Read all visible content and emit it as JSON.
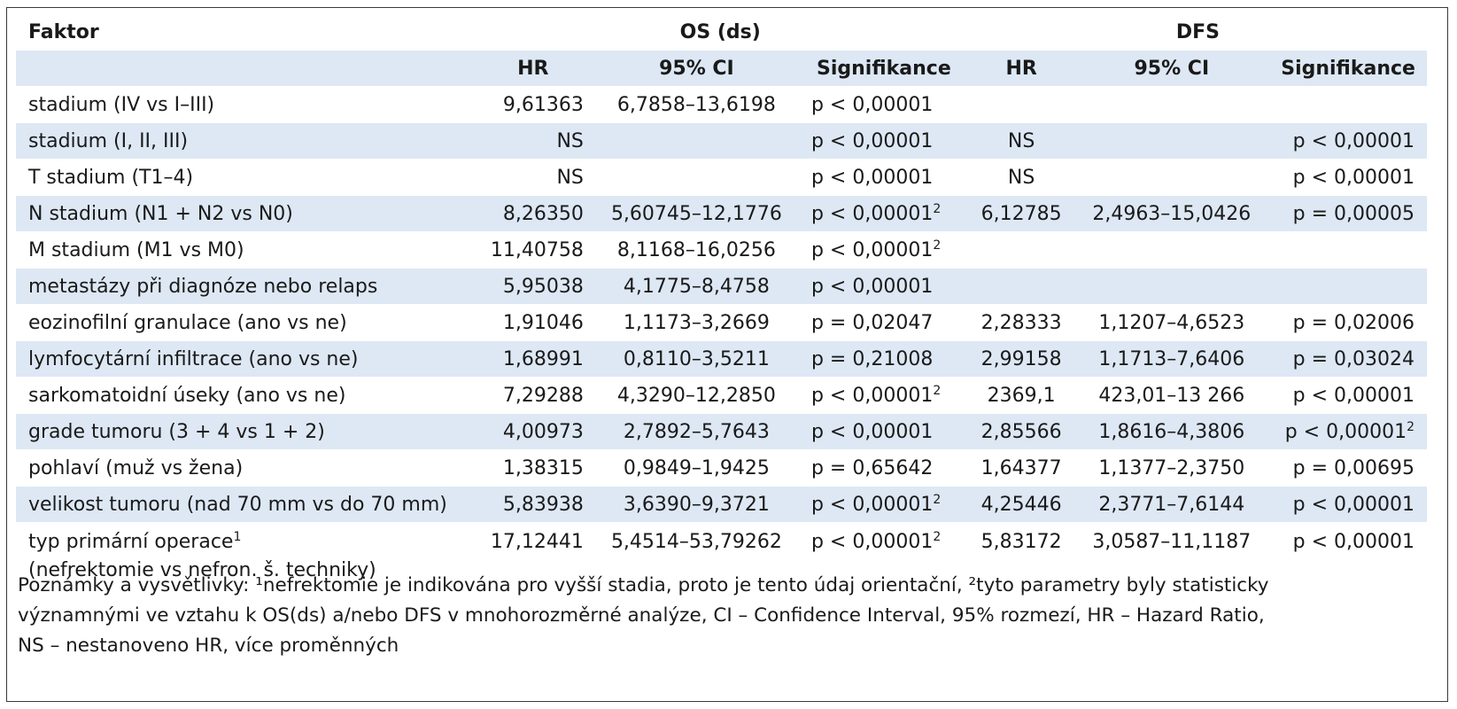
{
  "headers": {
    "factor": "Faktor",
    "group_os": "OS (ds)",
    "group_dfs": "DFS",
    "hr": "HR",
    "ci": "95% CI",
    "sig": "Signifikance"
  },
  "rows": [
    {
      "factor": "stadium (IV vs I–III)",
      "factor2": "",
      "os_hr": "9,61363",
      "os_ci": "6,7858–13,6198",
      "os_sig": "p < 0,00001",
      "os_sup": "",
      "dfs_hr": "",
      "dfs_ci": "",
      "dfs_sig": "",
      "dfs_sup": "",
      "factor_sup": ""
    },
    {
      "factor": "stadium (I, II, III)",
      "factor2": "",
      "os_hr": "NS",
      "os_ci": "",
      "os_sig": "p < 0,00001",
      "os_sup": "",
      "dfs_hr": "NS",
      "dfs_ci": "",
      "dfs_sig": "p < 0,00001",
      "dfs_sup": "",
      "factor_sup": ""
    },
    {
      "factor": "T stadium (T1–4)",
      "factor2": "",
      "os_hr": "NS",
      "os_ci": "",
      "os_sig": "p < 0,00001",
      "os_sup": "",
      "dfs_hr": "NS",
      "dfs_ci": "",
      "dfs_sig": "p < 0,00001",
      "dfs_sup": "",
      "factor_sup": ""
    },
    {
      "factor": "N stadium (N1 + N2 vs N0)",
      "factor2": "",
      "os_hr": "8,26350",
      "os_ci": "5,60745–12,1776",
      "os_sig": "p < 0,00001",
      "os_sup": "2",
      "dfs_hr": "6,12785",
      "dfs_ci": "2,4963–15,0426",
      "dfs_sig": "p = 0,00005",
      "dfs_sup": "",
      "factor_sup": ""
    },
    {
      "factor": "M stadium (M1 vs M0)",
      "factor2": "",
      "os_hr": "11,40758",
      "os_ci": "8,1168–16,0256",
      "os_sig": "p < 0,00001",
      "os_sup": "2",
      "dfs_hr": "",
      "dfs_ci": "",
      "dfs_sig": "",
      "dfs_sup": "",
      "factor_sup": ""
    },
    {
      "factor": "metastázy při diagnóze nebo relaps",
      "factor2": "",
      "os_hr": "5,95038",
      "os_ci": "4,1775–8,4758",
      "os_sig": "p < 0,00001",
      "os_sup": "",
      "dfs_hr": "",
      "dfs_ci": "",
      "dfs_sig": "",
      "dfs_sup": "",
      "factor_sup": ""
    },
    {
      "factor": "eozinofilní granulace (ano vs ne)",
      "factor2": "",
      "os_hr": "1,91046",
      "os_ci": "1,1173–3,2669",
      "os_sig": "p = 0,02047",
      "os_sup": "",
      "dfs_hr": "2,28333",
      "dfs_ci": "1,1207–4,6523",
      "dfs_sig": "p = 0,02006",
      "dfs_sup": "",
      "factor_sup": ""
    },
    {
      "factor": "lymfocytární infiltrace (ano vs ne)",
      "factor2": "",
      "os_hr": "1,68991",
      "os_ci": "0,8110–3,5211",
      "os_sig": "p = 0,21008",
      "os_sup": "",
      "dfs_hr": "2,99158",
      "dfs_ci": "1,1713–7,6406",
      "dfs_sig": "p = 0,03024",
      "dfs_sup": "",
      "factor_sup": ""
    },
    {
      "factor": "sarkomatoidní úseky (ano vs ne)",
      "factor2": "",
      "os_hr": "7,29288",
      "os_ci": "4,3290–12,2850",
      "os_sig": "p < 0,00001",
      "os_sup": "2",
      "dfs_hr": "2369,1",
      "dfs_ci": "423,01–13 266",
      "dfs_sig": "p < 0,00001",
      "dfs_sup": "",
      "factor_sup": ""
    },
    {
      "factor": "grade tumoru (3 + 4 vs 1 + 2)",
      "factor2": "",
      "os_hr": "4,00973",
      "os_ci": "2,7892–5,7643",
      "os_sig": "p < 0,00001",
      "os_sup": "",
      "dfs_hr": "2,85566",
      "dfs_ci": "1,8616–4,3806",
      "dfs_sig": "p < 0,00001",
      "dfs_sup": "2",
      "factor_sup": ""
    },
    {
      "factor": "pohlaví (muž vs žena)",
      "factor2": "",
      "os_hr": "1,38315",
      "os_ci": "0,9849–1,9425",
      "os_sig": "p = 0,65642",
      "os_sup": "",
      "dfs_hr": "1,64377",
      "dfs_ci": "1,1377–2,3750",
      "dfs_sig": "p = 0,00695",
      "dfs_sup": "",
      "factor_sup": ""
    },
    {
      "factor": "velikost tumoru (nad 70 mm vs do 70 mm)",
      "factor2": "",
      "os_hr": "5,83938",
      "os_ci": "3,6390–9,3721",
      "os_sig": "p < 0,00001",
      "os_sup": "2",
      "dfs_hr": "4,25446",
      "dfs_ci": "2,3771–7,6144",
      "dfs_sig": "p < 0,00001",
      "dfs_sup": "",
      "factor_sup": ""
    },
    {
      "factor": "typ primární operace",
      "factor2": "(nefrektomie vs nefron. š. techniky)",
      "os_hr": "17,12441",
      "os_ci": "5,4514–53,79262",
      "os_sig": "p < 0,00001",
      "os_sup": "2",
      "dfs_hr": "5,83172",
      "dfs_ci": "3,0587–11,1187",
      "dfs_sig": "p < 0,00001",
      "dfs_sup": "",
      "factor_sup": "1"
    }
  ],
  "notes": {
    "line1": "Poznámky a vysvětlivky: ¹nefrektomie je indikována pro vyšší stadia, proto je tento údaj orientační, ²tyto parametry byly statisticky",
    "line2": "významnými ve vztahu k OS(ds) a/nebo  DFS  v mnohorozměrné analýze, CI – Confidence Interval, 95% rozmezí, HR – Hazard Ratio,",
    "line3": "NS – nestanoveno HR, více proměnných"
  }
}
